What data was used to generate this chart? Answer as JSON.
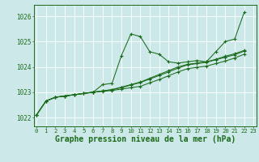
{
  "background_color": "#cce8e8",
  "grid_color": "#ffffff",
  "line_color": "#1a6b1a",
  "xlabel": "Graphe pression niveau de la mer (hPa)",
  "xlabel_fontsize": 7.0,
  "ylabel_ticks": [
    1022,
    1023,
    1024,
    1025,
    1026
  ],
  "xlim": [
    -0.3,
    23.3
  ],
  "ylim": [
    1021.65,
    1026.45
  ],
  "tick_fontsize": 5.2,
  "series": [
    [
      1022.1,
      1022.65,
      1022.8,
      1022.85,
      1022.9,
      1022.95,
      1023.0,
      1023.3,
      1023.35,
      1024.45,
      1025.3,
      1025.2,
      1024.6,
      1024.5,
      1024.2,
      1024.15,
      1024.2,
      1024.25,
      1024.2,
      1024.6,
      1025.0,
      1025.1,
      1026.15
    ],
    [
      1022.1,
      1022.65,
      1022.8,
      1022.85,
      1022.9,
      1022.95,
      1023.0,
      1023.05,
      1023.1,
      1023.2,
      1023.3,
      1023.4,
      1023.55,
      1023.7,
      1023.85,
      1024.0,
      1024.1,
      1024.15,
      1024.2,
      1024.3,
      1024.42,
      1024.52,
      1024.65
    ],
    [
      1022.1,
      1022.65,
      1022.8,
      1022.85,
      1022.9,
      1022.95,
      1023.0,
      1023.05,
      1023.1,
      1023.18,
      1023.28,
      1023.38,
      1023.52,
      1023.66,
      1023.8,
      1023.95,
      1024.08,
      1024.13,
      1024.18,
      1024.28,
      1024.38,
      1024.48,
      1024.62
    ],
    [
      1022.1,
      1022.65,
      1022.8,
      1022.85,
      1022.9,
      1022.95,
      1023.0,
      1023.03,
      1023.07,
      1023.12,
      1023.18,
      1023.23,
      1023.37,
      1023.5,
      1023.65,
      1023.8,
      1023.93,
      1023.98,
      1024.03,
      1024.13,
      1024.23,
      1024.35,
      1024.5
    ]
  ]
}
